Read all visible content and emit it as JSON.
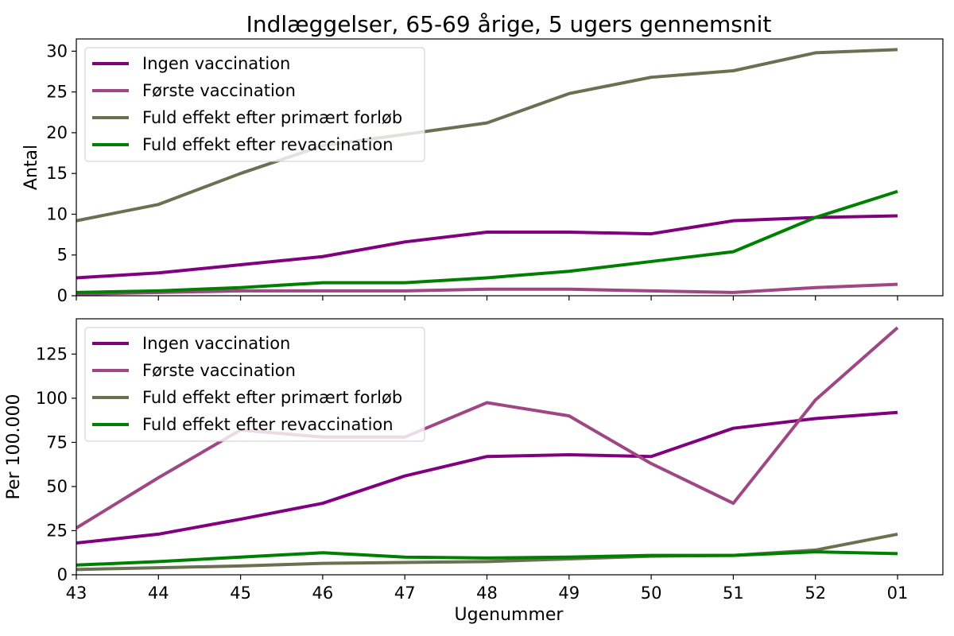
{
  "chart_data": {
    "type": "line",
    "title": "Indlæggelser, 65-69 årige, 5 ugers gennemsnit",
    "xlabel": "Ugenummer",
    "x": [
      "43",
      "44",
      "45",
      "46",
      "47",
      "48",
      "49",
      "50",
      "51",
      "52",
      "01"
    ],
    "legend_position": "upper-left",
    "colors": {
      "Ingen vaccination": "#800080",
      "Første vaccination": "#9e4784",
      "Fuld effekt efter primært forløb": "#6b7052",
      "Fuld effekt efter revaccination": "#008000"
    },
    "panels": [
      {
        "ylabel": "Antal",
        "ylim": [
          0,
          31.5
        ],
        "yticks": [
          0,
          5,
          10,
          15,
          20,
          25,
          30
        ],
        "series": [
          {
            "name": "Ingen vaccination",
            "values": [
              2.2,
              2.8,
              3.8,
              4.8,
              6.6,
              7.8,
              7.8,
              7.6,
              9.2,
              9.6,
              9.8
            ]
          },
          {
            "name": "Første vaccination",
            "values": [
              0.2,
              0.4,
              0.6,
              0.6,
              0.6,
              0.8,
              0.8,
              0.6,
              0.4,
              1.0,
              1.4
            ]
          },
          {
            "name": "Fuld effekt efter primært forløb",
            "values": [
              9.2,
              11.2,
              15.0,
              18.4,
              19.8,
              21.2,
              24.8,
              26.8,
              27.6,
              29.8,
              30.2
            ]
          },
          {
            "name": "Fuld effekt efter revaccination",
            "values": [
              0.4,
              0.6,
              1.0,
              1.6,
              1.6,
              2.2,
              3.0,
              4.2,
              5.4,
              9.6,
              12.8
            ]
          }
        ]
      },
      {
        "ylabel": "Per 100.000",
        "ylim": [
          0,
          145
        ],
        "yticks": [
          0,
          25,
          50,
          75,
          100,
          125
        ],
        "series": [
          {
            "name": "Ingen vaccination",
            "values": [
              18,
              23,
              31.5,
              40.5,
              56,
              67,
              68,
              67,
              83,
              88.5,
              92
            ]
          },
          {
            "name": "Første vaccination",
            "values": [
              26.5,
              55,
              82,
              78,
              78,
              97.5,
              90,
              63,
              40.5,
              99,
              140
            ]
          },
          {
            "name": "Fuld effekt efter primært forløb",
            "values": [
              3,
              4,
              5,
              6.5,
              7,
              7.5,
              9,
              10.5,
              11,
              14,
              23
            ]
          },
          {
            "name": "Fuld effekt efter revaccination",
            "values": [
              5.5,
              7.5,
              10,
              12.5,
              10,
              9.5,
              10,
              11,
              11,
              13,
              12
            ]
          }
        ]
      }
    ]
  }
}
